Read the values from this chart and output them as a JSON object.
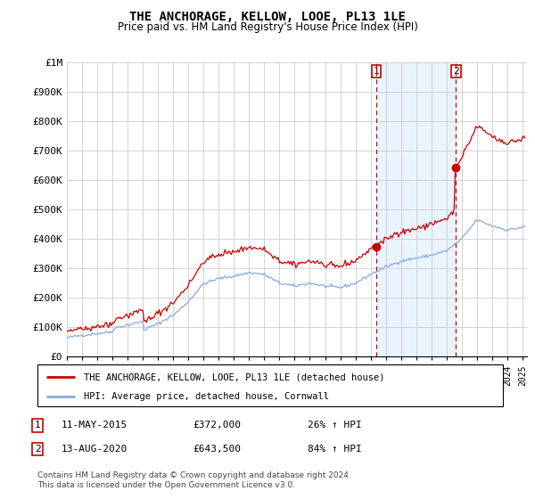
{
  "title": "THE ANCHORAGE, KELLOW, LOOE, PL13 1LE",
  "subtitle": "Price paid vs. HM Land Registry's House Price Index (HPI)",
  "hpi_label": "HPI: Average price, detached house, Cornwall",
  "property_label": "THE ANCHORAGE, KELLOW, LOOE, PL13 1LE (detached house)",
  "footer": "Contains HM Land Registry data © Crown copyright and database right 2024.\nThis data is licensed under the Open Government Licence v3.0.",
  "ylim": [
    0,
    1000000
  ],
  "yticks": [
    0,
    100000,
    200000,
    300000,
    400000,
    500000,
    600000,
    700000,
    800000,
    900000,
    1000000
  ],
  "ytick_labels": [
    "£0",
    "£100K",
    "£200K",
    "£300K",
    "£400K",
    "£500K",
    "£600K",
    "£700K",
    "£800K",
    "£900K",
    "£1M"
  ],
  "sale1_x": 2015.37,
  "sale1_y": 372000,
  "sale2_x": 2020.62,
  "sale2_y": 643500,
  "vline1_x": 2015.37,
  "vline2_x": 2020.62,
  "line_color_property": "#cc0000",
  "line_color_hpi": "#88aadd",
  "bg_shade_color": "#ddeeff",
  "xlim_left": 1995.0,
  "xlim_right": 2025.3
}
